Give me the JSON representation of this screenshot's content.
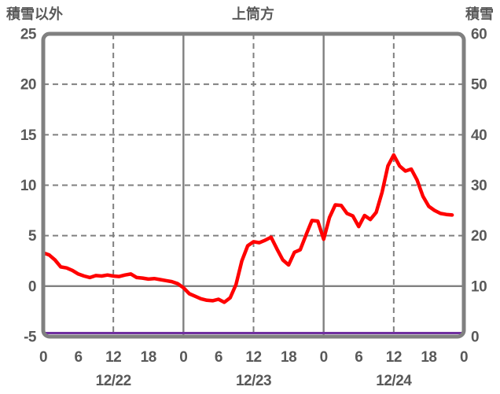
{
  "header": {
    "left_axis_title": "積雪以外",
    "chart_title": "上筒方",
    "right_axis_title": "積雪"
  },
  "chart_data": {
    "type": "line",
    "title": "上筒方",
    "left_axis": {
      "label": "積雪以外",
      "min": -5,
      "max": 25,
      "ticks": [
        25,
        20,
        15,
        10,
        5,
        0,
        -5
      ]
    },
    "right_axis": {
      "label": "積雪",
      "min": 0,
      "max": 60,
      "ticks": [
        60,
        50,
        40,
        30,
        20,
        10,
        0
      ]
    },
    "x_axis": {
      "total_hours": 72,
      "hour_tick_labels": [
        "0",
        "6",
        "12",
        "18",
        "0",
        "6",
        "12",
        "18",
        "0",
        "6",
        "12",
        "18",
        "0"
      ],
      "date_labels": [
        "12/22",
        "12/23",
        "12/24"
      ],
      "noon_dashed_gridline_hours": [
        12,
        36,
        60
      ],
      "midnight_solid_gridline_hours": [
        24,
        48
      ]
    },
    "grid": {
      "horizontal_dashed_left_values": [
        20,
        15,
        10,
        5
      ],
      "horizontal_solid_left_values": [
        0
      ]
    },
    "series": [
      {
        "name": "積雪以外",
        "axis": "left",
        "color": "#ff0000",
        "width": 4.5,
        "start_hour": 0,
        "step_hours": 1,
        "values": [
          3.3,
          3.1,
          2.6,
          1.9,
          1.8,
          1.55,
          1.2,
          1.0,
          0.85,
          1.05,
          1.0,
          1.1,
          1.0,
          0.95,
          1.1,
          1.2,
          0.85,
          0.8,
          0.7,
          0.75,
          0.65,
          0.55,
          0.45,
          0.25,
          -0.15,
          -0.75,
          -1.0,
          -1.25,
          -1.4,
          -1.45,
          -1.3,
          -1.6,
          -1.15,
          0.15,
          2.5,
          4.0,
          4.4,
          4.3,
          4.55,
          4.85,
          3.7,
          2.6,
          2.1,
          3.35,
          3.6,
          5.1,
          6.5,
          6.45,
          4.65,
          6.8,
          8.05,
          8.0,
          7.2,
          6.95,
          5.9,
          7.0,
          6.6,
          7.3,
          9.3,
          11.9,
          13.0,
          11.9,
          11.4,
          11.6,
          10.5,
          8.9,
          7.9,
          7.5,
          7.2,
          7.1,
          7.05
        ]
      },
      {
        "name": "積雪",
        "axis": "right",
        "color": "#7030a0",
        "width": 3,
        "start_hour": 0,
        "step_hours": 1,
        "values": [
          0,
          0,
          0,
          0,
          0,
          0,
          0,
          0,
          0,
          0,
          0,
          0,
          0,
          0,
          0,
          0,
          0,
          0,
          0,
          0,
          0,
          0,
          0,
          0,
          0,
          0,
          0,
          0,
          0,
          0,
          0,
          0,
          0,
          0,
          0,
          0,
          0,
          0,
          0,
          0,
          0,
          0,
          0,
          0,
          0,
          0,
          0,
          0,
          0,
          0,
          0,
          0,
          0,
          0,
          0,
          0,
          0,
          0,
          0,
          0,
          0,
          0,
          0,
          0,
          0,
          0,
          0,
          0,
          0,
          0,
          0,
          0,
          0
        ]
      }
    ],
    "colors": {
      "frame": "#808080",
      "grid": "#808080",
      "text": "#595959",
      "background": "#ffffff"
    }
  }
}
